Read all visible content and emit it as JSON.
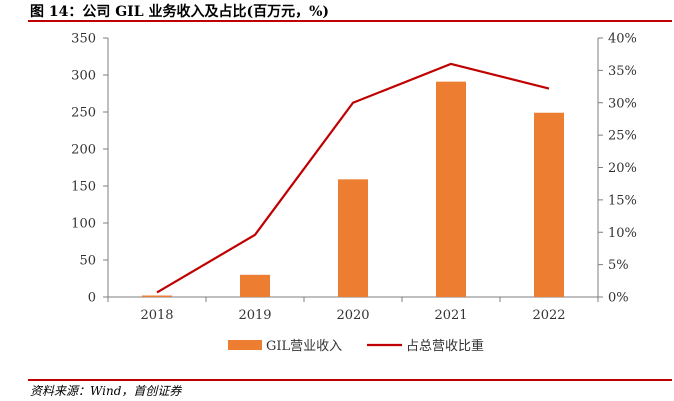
{
  "header": {
    "title": "图 14：公司 GIL 业务收入及占比(百万元，%)"
  },
  "footer": {
    "source": "资料来源：Wind，首创证券"
  },
  "colors": {
    "bar": "#ED7D31",
    "line": "#C00000",
    "axis": "#7f7f7f",
    "rule": "#C00000"
  },
  "chart_data": {
    "type": "bar",
    "title": "公司 GIL 业务收入及占比(百万元，%)",
    "categories": [
      "2018",
      "2019",
      "2020",
      "2021",
      "2022"
    ],
    "series": [
      {
        "name": "GIL营业收入",
        "type": "bar",
        "axis": "left",
        "values": [
          2,
          30,
          159,
          291,
          249
        ]
      },
      {
        "name": "占总营收比重",
        "type": "line",
        "axis": "right",
        "values": [
          0.7,
          9.6,
          30.0,
          36.0,
          32.2
        ]
      }
    ],
    "y_left": {
      "min": 0,
      "max": 350,
      "step": 50,
      "ticks": [
        "0",
        "50",
        "100",
        "150",
        "200",
        "250",
        "300",
        "350"
      ]
    },
    "y_right": {
      "min": 0,
      "max": 40,
      "step": 5,
      "ticks": [
        "0%",
        "5%",
        "10%",
        "15%",
        "20%",
        "25%",
        "30%",
        "35%",
        "40%"
      ]
    },
    "legend": {
      "placement": "bottom",
      "items": [
        "GIL营业收入",
        "占总营收比重"
      ]
    }
  }
}
